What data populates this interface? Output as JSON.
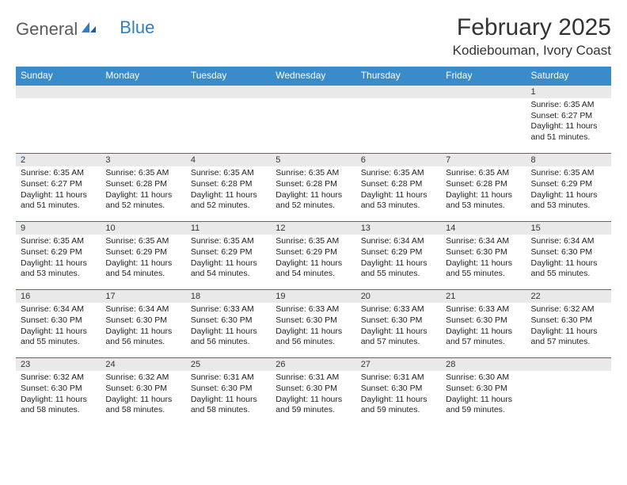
{
  "logo": {
    "text1": "General",
    "text2": "Blue"
  },
  "title": "February 2025",
  "location": "Kodiebouman, Ivory Coast",
  "colors": {
    "header_bg": "#3a8bc9",
    "header_fg": "#ffffff",
    "row_border": "#3a6f9e",
    "daynum_bg": "#e9e9e9",
    "logo_gray": "#5a5a5a",
    "logo_blue": "#2f7fc2",
    "page_bg": "#ffffff"
  },
  "weekdays": [
    "Sunday",
    "Monday",
    "Tuesday",
    "Wednesday",
    "Thursday",
    "Friday",
    "Saturday"
  ],
  "weeks": [
    [
      {
        "day": "",
        "sunrise": "",
        "sunset": "",
        "daylight": ""
      },
      {
        "day": "",
        "sunrise": "",
        "sunset": "",
        "daylight": ""
      },
      {
        "day": "",
        "sunrise": "",
        "sunset": "",
        "daylight": ""
      },
      {
        "day": "",
        "sunrise": "",
        "sunset": "",
        "daylight": ""
      },
      {
        "day": "",
        "sunrise": "",
        "sunset": "",
        "daylight": ""
      },
      {
        "day": "",
        "sunrise": "",
        "sunset": "",
        "daylight": ""
      },
      {
        "day": "1",
        "sunrise": "Sunrise: 6:35 AM",
        "sunset": "Sunset: 6:27 PM",
        "daylight": "Daylight: 11 hours and 51 minutes."
      }
    ],
    [
      {
        "day": "2",
        "sunrise": "Sunrise: 6:35 AM",
        "sunset": "Sunset: 6:27 PM",
        "daylight": "Daylight: 11 hours and 51 minutes."
      },
      {
        "day": "3",
        "sunrise": "Sunrise: 6:35 AM",
        "sunset": "Sunset: 6:28 PM",
        "daylight": "Daylight: 11 hours and 52 minutes."
      },
      {
        "day": "4",
        "sunrise": "Sunrise: 6:35 AM",
        "sunset": "Sunset: 6:28 PM",
        "daylight": "Daylight: 11 hours and 52 minutes."
      },
      {
        "day": "5",
        "sunrise": "Sunrise: 6:35 AM",
        "sunset": "Sunset: 6:28 PM",
        "daylight": "Daylight: 11 hours and 52 minutes."
      },
      {
        "day": "6",
        "sunrise": "Sunrise: 6:35 AM",
        "sunset": "Sunset: 6:28 PM",
        "daylight": "Daylight: 11 hours and 53 minutes."
      },
      {
        "day": "7",
        "sunrise": "Sunrise: 6:35 AM",
        "sunset": "Sunset: 6:28 PM",
        "daylight": "Daylight: 11 hours and 53 minutes."
      },
      {
        "day": "8",
        "sunrise": "Sunrise: 6:35 AM",
        "sunset": "Sunset: 6:29 PM",
        "daylight": "Daylight: 11 hours and 53 minutes."
      }
    ],
    [
      {
        "day": "9",
        "sunrise": "Sunrise: 6:35 AM",
        "sunset": "Sunset: 6:29 PM",
        "daylight": "Daylight: 11 hours and 53 minutes."
      },
      {
        "day": "10",
        "sunrise": "Sunrise: 6:35 AM",
        "sunset": "Sunset: 6:29 PM",
        "daylight": "Daylight: 11 hours and 54 minutes."
      },
      {
        "day": "11",
        "sunrise": "Sunrise: 6:35 AM",
        "sunset": "Sunset: 6:29 PM",
        "daylight": "Daylight: 11 hours and 54 minutes."
      },
      {
        "day": "12",
        "sunrise": "Sunrise: 6:35 AM",
        "sunset": "Sunset: 6:29 PM",
        "daylight": "Daylight: 11 hours and 54 minutes."
      },
      {
        "day": "13",
        "sunrise": "Sunrise: 6:34 AM",
        "sunset": "Sunset: 6:29 PM",
        "daylight": "Daylight: 11 hours and 55 minutes."
      },
      {
        "day": "14",
        "sunrise": "Sunrise: 6:34 AM",
        "sunset": "Sunset: 6:30 PM",
        "daylight": "Daylight: 11 hours and 55 minutes."
      },
      {
        "day": "15",
        "sunrise": "Sunrise: 6:34 AM",
        "sunset": "Sunset: 6:30 PM",
        "daylight": "Daylight: 11 hours and 55 minutes."
      }
    ],
    [
      {
        "day": "16",
        "sunrise": "Sunrise: 6:34 AM",
        "sunset": "Sunset: 6:30 PM",
        "daylight": "Daylight: 11 hours and 55 minutes."
      },
      {
        "day": "17",
        "sunrise": "Sunrise: 6:34 AM",
        "sunset": "Sunset: 6:30 PM",
        "daylight": "Daylight: 11 hours and 56 minutes."
      },
      {
        "day": "18",
        "sunrise": "Sunrise: 6:33 AM",
        "sunset": "Sunset: 6:30 PM",
        "daylight": "Daylight: 11 hours and 56 minutes."
      },
      {
        "day": "19",
        "sunrise": "Sunrise: 6:33 AM",
        "sunset": "Sunset: 6:30 PM",
        "daylight": "Daylight: 11 hours and 56 minutes."
      },
      {
        "day": "20",
        "sunrise": "Sunrise: 6:33 AM",
        "sunset": "Sunset: 6:30 PM",
        "daylight": "Daylight: 11 hours and 57 minutes."
      },
      {
        "day": "21",
        "sunrise": "Sunrise: 6:33 AM",
        "sunset": "Sunset: 6:30 PM",
        "daylight": "Daylight: 11 hours and 57 minutes."
      },
      {
        "day": "22",
        "sunrise": "Sunrise: 6:32 AM",
        "sunset": "Sunset: 6:30 PM",
        "daylight": "Daylight: 11 hours and 57 minutes."
      }
    ],
    [
      {
        "day": "23",
        "sunrise": "Sunrise: 6:32 AM",
        "sunset": "Sunset: 6:30 PM",
        "daylight": "Daylight: 11 hours and 58 minutes."
      },
      {
        "day": "24",
        "sunrise": "Sunrise: 6:32 AM",
        "sunset": "Sunset: 6:30 PM",
        "daylight": "Daylight: 11 hours and 58 minutes."
      },
      {
        "day": "25",
        "sunrise": "Sunrise: 6:31 AM",
        "sunset": "Sunset: 6:30 PM",
        "daylight": "Daylight: 11 hours and 58 minutes."
      },
      {
        "day": "26",
        "sunrise": "Sunrise: 6:31 AM",
        "sunset": "Sunset: 6:30 PM",
        "daylight": "Daylight: 11 hours and 59 minutes."
      },
      {
        "day": "27",
        "sunrise": "Sunrise: 6:31 AM",
        "sunset": "Sunset: 6:30 PM",
        "daylight": "Daylight: 11 hours and 59 minutes."
      },
      {
        "day": "28",
        "sunrise": "Sunrise: 6:30 AM",
        "sunset": "Sunset: 6:30 PM",
        "daylight": "Daylight: 11 hours and 59 minutes."
      },
      {
        "day": "",
        "sunrise": "",
        "sunset": "",
        "daylight": ""
      }
    ]
  ]
}
